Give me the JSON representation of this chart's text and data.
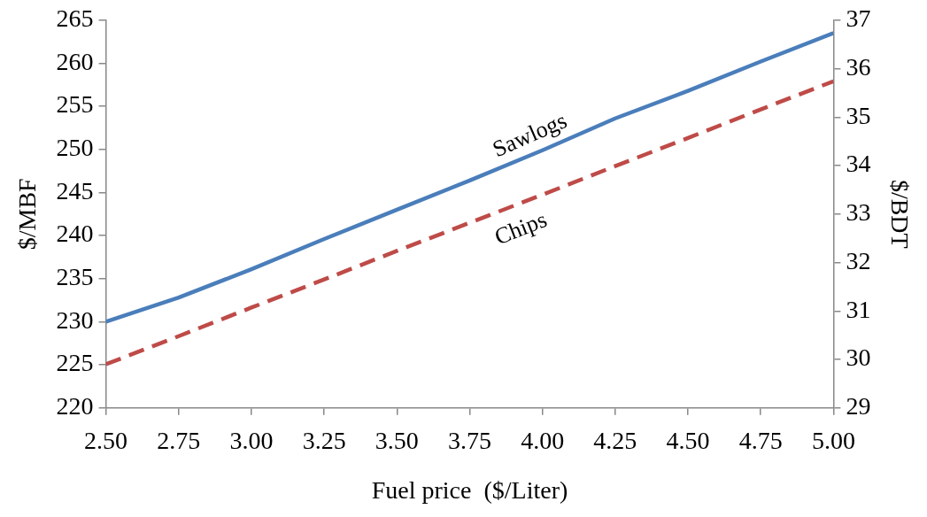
{
  "chart_data": {
    "type": "line",
    "xlabel": "Fuel price  ($/Liter)",
    "ylabel": "$/MBF",
    "y2label": "$/BDT",
    "x": [
      2.5,
      2.75,
      3.0,
      3.25,
      3.5,
      3.75,
      4.0,
      4.25,
      4.5,
      4.75,
      5.0
    ],
    "series": [
      {
        "name": "Sawlogs",
        "color": "#4a7ebb",
        "line_style": "solid",
        "values": [
          230.0,
          232.8,
          236.1,
          239.6,
          243.0,
          246.4,
          249.9,
          253.6,
          256.8,
          260.2,
          263.5
        ]
      },
      {
        "name": "Chips",
        "color": "#be4b48",
        "line_style": "dashed",
        "axis": "y2",
        "values": [
          29.9,
          30.48,
          31.07,
          31.65,
          32.24,
          32.82,
          33.4,
          33.99,
          34.57,
          35.16,
          35.74
        ]
      }
    ],
    "xlim": [
      2.5,
      5.0
    ],
    "xticks": [
      {
        "value": 2.5,
        "label": "2.50"
      },
      {
        "value": 2.75,
        "label": "2.75"
      },
      {
        "value": 3.0,
        "label": "3.00"
      },
      {
        "value": 3.25,
        "label": "3.25"
      },
      {
        "value": 3.5,
        "label": "3.50"
      },
      {
        "value": 3.75,
        "label": "3.75"
      },
      {
        "value": 4.0,
        "label": "4.00"
      },
      {
        "value": 4.25,
        "label": "4.25"
      },
      {
        "value": 4.5,
        "label": "4.50"
      },
      {
        "value": 4.75,
        "label": "4.75"
      },
      {
        "value": 5.0,
        "label": "5.00"
      }
    ],
    "ylim": [
      220,
      265
    ],
    "yticks": [
      220,
      225,
      230,
      235,
      240,
      245,
      250,
      255,
      260,
      265
    ],
    "y2lim": [
      29,
      37
    ],
    "y2ticks": [
      29,
      30,
      31,
      32,
      33,
      34,
      35,
      36,
      37
    ],
    "grid": false,
    "legend": false,
    "marker": "none"
  }
}
